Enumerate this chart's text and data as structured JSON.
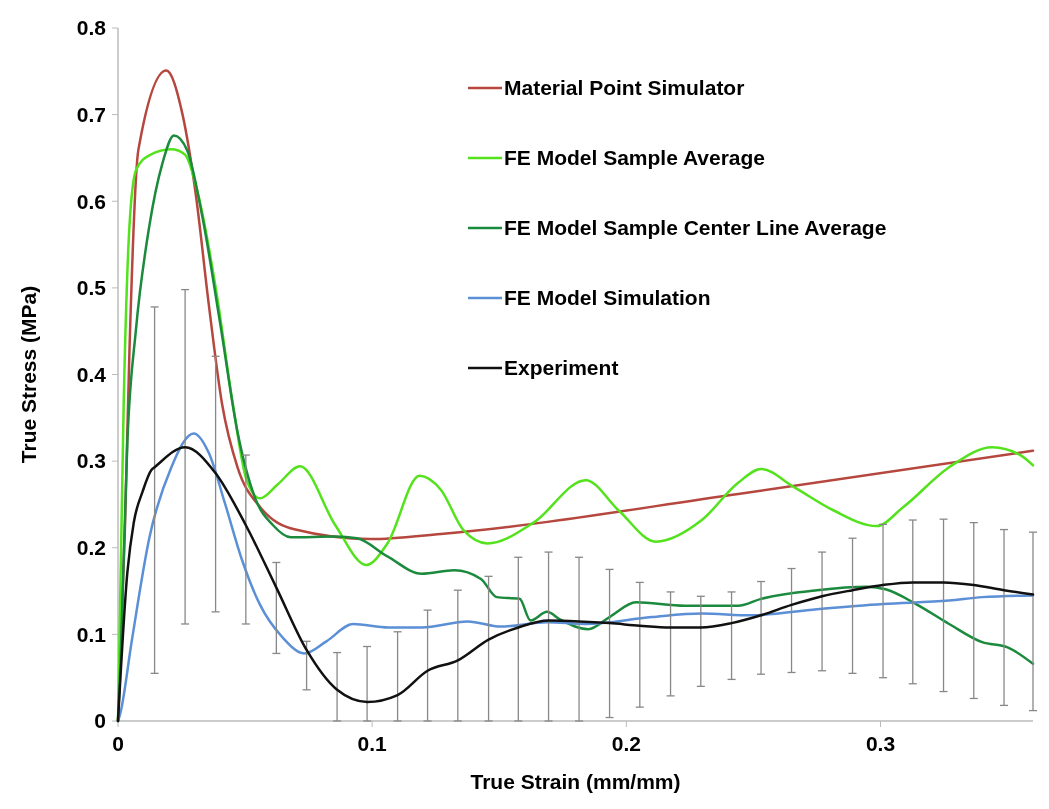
{
  "chart_data": {
    "type": "line",
    "xlabel": "True Strain (mm/mm)",
    "ylabel": "True Stress (MPa)",
    "xlim": [
      0,
      0.36
    ],
    "ylim": [
      0,
      0.8
    ],
    "xticks": [
      0,
      0.1,
      0.2,
      0.3
    ],
    "yticks": [
      0,
      0.1,
      0.2,
      0.3,
      0.4,
      0.5,
      0.6,
      0.7,
      0.8
    ],
    "grid": false,
    "legend": "top right",
    "line_style": "solid",
    "marker": "none",
    "series": [
      {
        "name": "Material Point Simulator",
        "color": "#b5473f",
        "x": [
          0,
          0.0027,
          0.0045,
          0.008,
          0.019,
          0.0254,
          0.0306,
          0.0358,
          0.041,
          0.047,
          0.0559,
          0.0698,
          0.0994,
          0.127,
          0.244,
          0.36
        ],
        "values": [
          0,
          0.221,
          0.427,
          0.659,
          0.751,
          0.7,
          0.608,
          0.479,
          0.365,
          0.293,
          0.247,
          0.221,
          0.21,
          0.216,
          0.262,
          0.312
        ]
      },
      {
        "name": "FE Model Sample Average",
        "color": "#53e21c",
        "x": [
          0,
          0.0023,
          0.0045,
          0.0071,
          0.0123,
          0.021,
          0.0263,
          0.032,
          0.0385,
          0.0455,
          0.0506,
          0.0559,
          0.0628,
          0.0716,
          0.0855,
          0.0977,
          0.106,
          0.1186,
          0.127,
          0.136,
          0.1454,
          0.1635,
          0.184,
          0.197,
          0.2116,
          0.2297,
          0.244,
          0.253,
          0.266,
          0.2816,
          0.2984,
          0.309,
          0.327,
          0.344,
          0.3555,
          0.36
        ],
        "values": [
          0,
          0.376,
          0.571,
          0.636,
          0.653,
          0.66,
          0.654,
          0.602,
          0.499,
          0.36,
          0.278,
          0.257,
          0.273,
          0.294,
          0.226,
          0.18,
          0.205,
          0.283,
          0.267,
          0.22,
          0.205,
          0.229,
          0.278,
          0.243,
          0.207,
          0.232,
          0.275,
          0.291,
          0.27,
          0.243,
          0.225,
          0.247,
          0.293,
          0.316,
          0.306,
          0.295
        ]
      },
      {
        "name": "FE Model Sample Center Line Average",
        "color": "#1b8a3d",
        "x": [
          0,
          0.001,
          0.0037,
          0.0071,
          0.0123,
          0.0175,
          0.022,
          0.0272,
          0.0332,
          0.0402,
          0.047,
          0.054,
          0.061,
          0.068,
          0.0855,
          0.094,
          0.106,
          0.1195,
          0.1323,
          0.1428,
          0.149,
          0.158,
          0.1623,
          0.1688,
          0.174,
          0.185,
          0.1934,
          0.2038,
          0.223,
          0.244,
          0.253,
          0.275,
          0.2946,
          0.302,
          0.314,
          0.327,
          0.34,
          0.35,
          0.36
        ],
        "values": [
          0,
          0.067,
          0.324,
          0.453,
          0.571,
          0.644,
          0.676,
          0.659,
          0.582,
          0.459,
          0.334,
          0.257,
          0.226,
          0.212,
          0.213,
          0.211,
          0.19,
          0.17,
          0.174,
          0.164,
          0.143,
          0.141,
          0.116,
          0.126,
          0.117,
          0.106,
          0.12,
          0.137,
          0.133,
          0.133,
          0.141,
          0.151,
          0.155,
          0.152,
          0.135,
          0.112,
          0.091,
          0.085,
          0.066
        ]
      },
      {
        "name": "FE Model Simulation",
        "color": "#5b8fd6",
        "x": [
          0,
          0.001,
          0.0054,
          0.0123,
          0.021,
          0.0298,
          0.0358,
          0.042,
          0.0489,
          0.0559,
          0.0646,
          0.0733,
          0.082,
          0.0925,
          0.1064,
          0.1195,
          0.1376,
          0.1506,
          0.1688,
          0.184,
          0.21,
          0.2297,
          0.249,
          0.275,
          0.301,
          0.327,
          0.34,
          0.36
        ],
        "values": [
          0,
          0.01,
          0.092,
          0.211,
          0.293,
          0.332,
          0.309,
          0.252,
          0.185,
          0.134,
          0.097,
          0.078,
          0.092,
          0.112,
          0.108,
          0.108,
          0.115,
          0.109,
          0.114,
          0.112,
          0.12,
          0.124,
          0.122,
          0.129,
          0.135,
          0.139,
          0.143,
          0.145
        ]
      },
      {
        "name": "Experiment",
        "color": "#111111",
        "x": [
          0,
          0.0037,
          0.0062,
          0.0097,
          0.0132,
          0.0144,
          0.0264,
          0.0384,
          0.0503,
          0.0623,
          0.0742,
          0.0862,
          0.098,
          0.11,
          0.1218,
          0.1337,
          0.1458,
          0.1575,
          0.1694,
          0.1814,
          0.1934,
          0.2053,
          0.2174,
          0.2293,
          0.2414,
          0.253,
          0.265,
          0.277,
          0.289,
          0.301,
          0.3127,
          0.3248,
          0.3367,
          0.3486,
          0.36
        ],
        "values": [
          0,
          0.172,
          0.229,
          0.265,
          0.29,
          0.293,
          0.316,
          0.286,
          0.226,
          0.154,
          0.082,
          0.036,
          0.022,
          0.03,
          0.058,
          0.07,
          0.094,
          0.108,
          0.116,
          0.115,
          0.113,
          0.11,
          0.108,
          0.108,
          0.113,
          0.122,
          0.134,
          0.144,
          0.151,
          0.157,
          0.16,
          0.16,
          0.157,
          0.151,
          0.146
        ],
        "errors": [
          null,
          null,
          null,
          null,
          null,
          [
            0.055,
            0.478
          ],
          [
            0.112,
            0.498
          ],
          [
            0.126,
            0.421
          ],
          [
            0.112,
            0.307
          ],
          [
            0.078,
            0.183
          ],
          [
            0.036,
            0.092
          ],
          [
            0,
            0.079
          ],
          [
            0,
            0.086
          ],
          [
            0,
            0.103
          ],
          [
            0,
            0.128
          ],
          [
            0,
            0.151
          ],
          [
            0,
            0.167
          ],
          [
            0,
            0.189
          ],
          [
            0,
            0.195
          ],
          [
            0,
            0.189
          ],
          [
            0.004,
            0.175
          ],
          [
            0.016,
            0.16
          ],
          [
            0.029,
            0.149
          ],
          [
            0.04,
            0.144
          ],
          [
            0.048,
            0.149
          ],
          [
            0.054,
            0.161
          ],
          [
            0.056,
            0.176
          ],
          [
            0.058,
            0.195
          ],
          [
            0.055,
            0.211
          ],
          [
            0.05,
            0.227
          ],
          [
            0.043,
            0.232
          ],
          [
            0.034,
            0.233
          ],
          [
            0.026,
            0.229
          ],
          [
            0.018,
            0.221
          ],
          [
            0.012,
            0.218
          ]
        ]
      }
    ]
  }
}
